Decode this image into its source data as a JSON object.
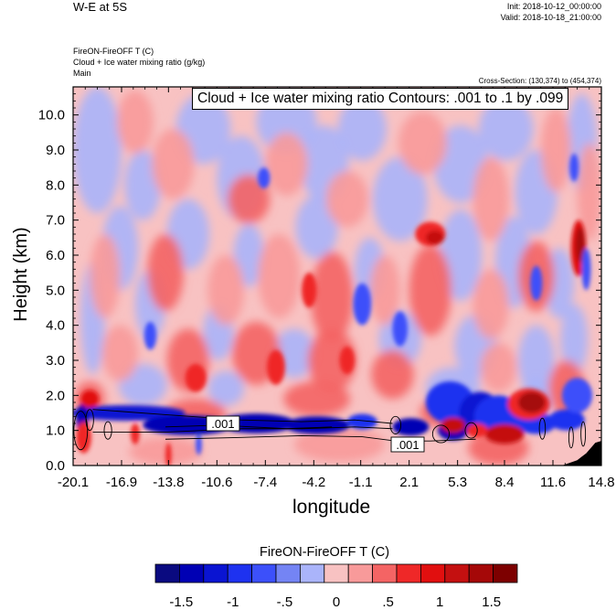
{
  "header": {
    "title": "W-E at 5S",
    "init": "Init: 2018-10-12_00:00:00",
    "valid": "Valid: 2018-10-18_21:00:00",
    "field_line1": "FireON-FireOFF T   (C)",
    "field_line2": "Cloud + Ice water mixing ratio   (g/kg)",
    "field_line3": "Main",
    "cross_section": "Cross-Section: (130,374) to (454,374)"
  },
  "chart_data": {
    "type": "heatmap",
    "title": "",
    "contour_info": "Cloud + Ice water mixing ratio Contours: .001 to .1 by .099",
    "xlabel": "longitude",
    "ylabel": "Height (km)",
    "xlim": [
      -20.1,
      14.8
    ],
    "ylim": [
      0.0,
      10.8
    ],
    "x_ticks": [
      "-20.1",
      "-16.9",
      "-13.8",
      "-10.6",
      "-7.4",
      "-4.2",
      "-1.1",
      "2.1",
      "5.3",
      "8.4",
      "11.6",
      "14.8"
    ],
    "x_tick_values": [
      -20.1,
      -16.9,
      -13.8,
      -10.6,
      -7.4,
      -4.2,
      -1.1,
      2.1,
      5.3,
      8.4,
      11.6,
      14.8
    ],
    "y_ticks": [
      "0.0",
      "1.0",
      "2.0",
      "3.0",
      "4.0",
      "5.0",
      "6.0",
      "7.0",
      "8.0",
      "9.0",
      "10.0"
    ],
    "y_tick_values": [
      0.0,
      1.0,
      2.0,
      3.0,
      4.0,
      5.0,
      6.0,
      7.0,
      8.0,
      9.0,
      10.0
    ],
    "contour_labels": [
      {
        "text": ".001",
        "x": -10.2,
        "y": 1.2
      },
      {
        "text": ".001",
        "x": 2.0,
        "y": 0.6
      }
    ],
    "colorbar": {
      "title": "FireON-FireOFF T  (C)",
      "colors": [
        "#0a0a80",
        "#0000b4",
        "#0a14d2",
        "#1e32f0",
        "#3c50fa",
        "#7484f4",
        "#aab4fa",
        "#f8c2c2",
        "#f89a9a",
        "#f46464",
        "#ef2828",
        "#e10f0f",
        "#c41010",
        "#a50808",
        "#7d0000"
      ],
      "tick_labels": [
        "-1.5",
        "-1",
        "-.5",
        "0",
        ".5",
        "1",
        "1.5"
      ],
      "tick_values": [
        -1.5,
        -1.0,
        -0.5,
        0.0,
        0.5,
        1.0,
        1.5
      ],
      "range": [
        -1.75,
        1.75
      ]
    },
    "grid": false
  }
}
